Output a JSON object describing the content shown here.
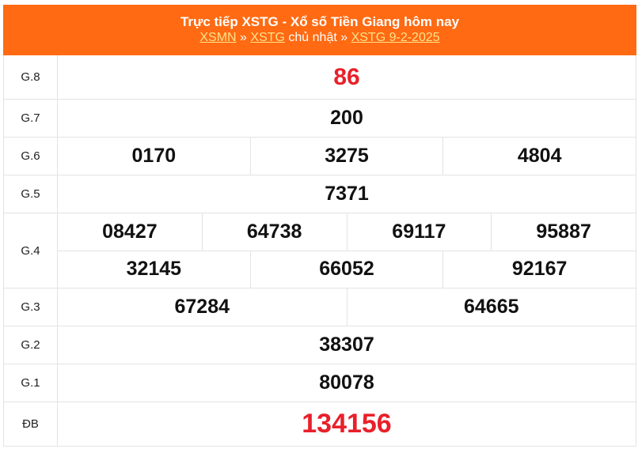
{
  "header": {
    "title": "Trực tiếp XSTG - Xổ số Tiền Giang hôm nay",
    "breadcrumb": {
      "link1": "XSMN",
      "sep1": " » ",
      "link2": "XSTG",
      "text": " chủ nhật » ",
      "link3": "XSTG 9-2-2025"
    }
  },
  "colors": {
    "header_bg": "#ff6a12",
    "special": "#e8202a",
    "link": "#ffe38a"
  },
  "prizes": [
    {
      "label": "G.8",
      "numbers": [
        "86"
      ]
    },
    {
      "label": "G.7",
      "numbers": [
        "200"
      ]
    },
    {
      "label": "G.6",
      "numbers": [
        "0170",
        "3275",
        "4804"
      ]
    },
    {
      "label": "G.5",
      "numbers": [
        "7371"
      ]
    },
    {
      "label": "G.4",
      "numbers": [
        "08427",
        "64738",
        "69117",
        "95887",
        "32145",
        "66052",
        "92167"
      ]
    },
    {
      "label": "G.3",
      "numbers": [
        "67284",
        "64665"
      ]
    },
    {
      "label": "G.2",
      "numbers": [
        "38307"
      ]
    },
    {
      "label": "G.1",
      "numbers": [
        "80078"
      ]
    },
    {
      "label": "ĐB",
      "numbers": [
        "134156"
      ]
    }
  ]
}
